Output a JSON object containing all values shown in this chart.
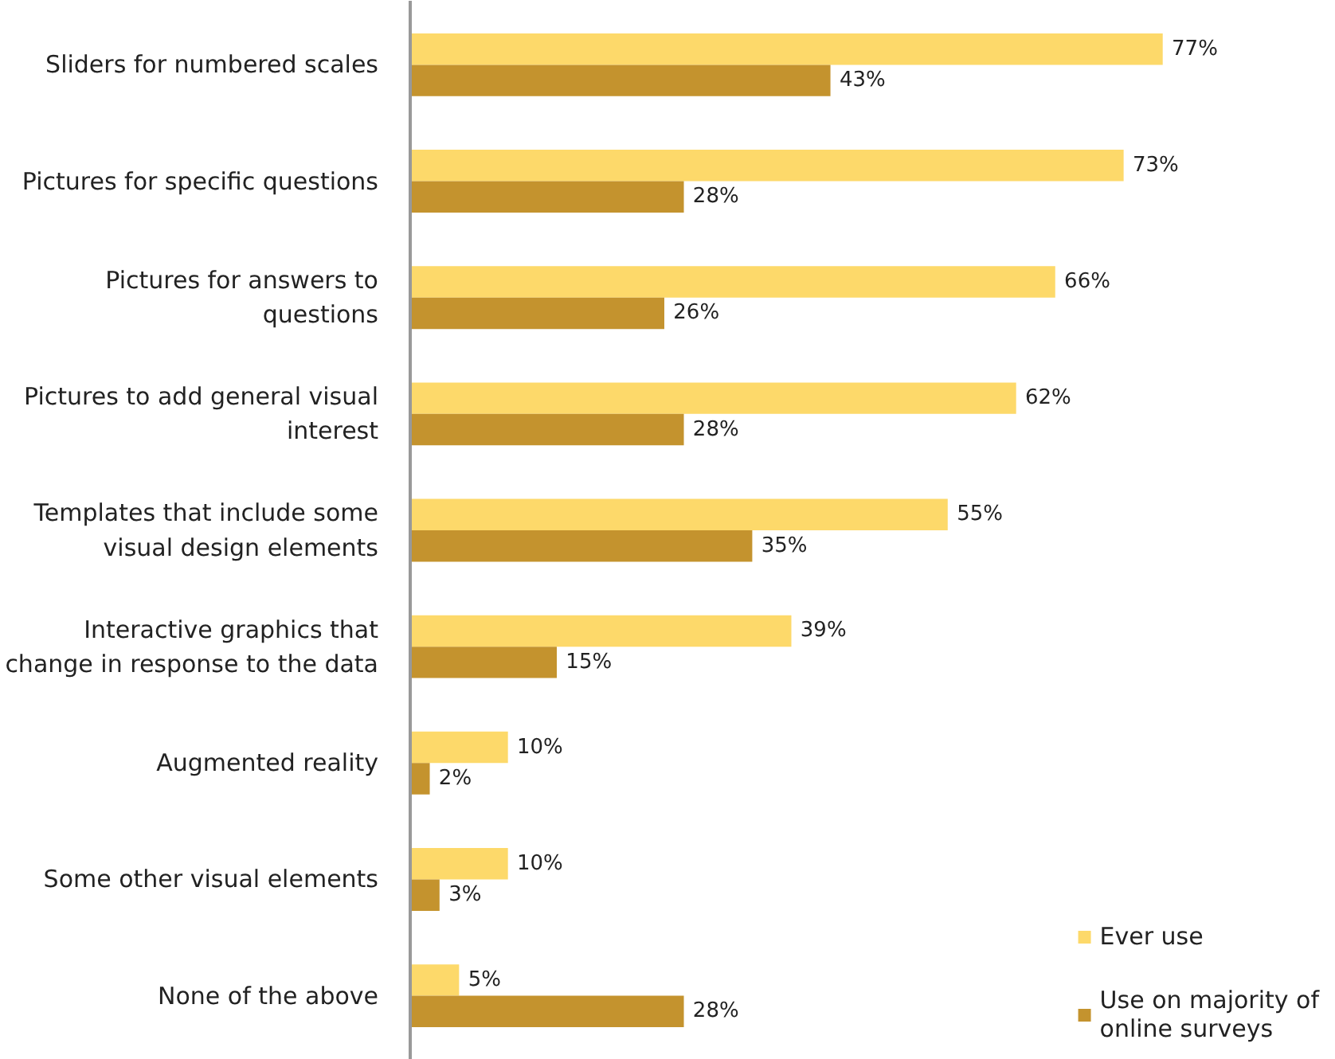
{
  "chart_data": {
    "type": "bar",
    "orientation": "horizontal",
    "categories": [
      "Sliders for numbered scales",
      "Pictures for specific questions",
      "Pictures for answers to questions",
      "Pictures to add general visual interest",
      "Templates that include some visual design elements",
      "Interactive graphics that change in response to the data",
      "Augmented reality",
      "Some other visual elements",
      "None of the above"
    ],
    "series": [
      {
        "name": "Ever use",
        "color": "#fdd96a",
        "values": [
          77,
          73,
          66,
          62,
          55,
          39,
          10,
          10,
          5
        ],
        "value_labels": [
          "77%",
          "73%",
          "66%",
          "62%",
          "55%",
          "39%",
          "10%",
          "10%",
          "5%"
        ]
      },
      {
        "name": "Use on majority of online surveys",
        "color": "#c4932e",
        "values": [
          43,
          28,
          26,
          28,
          35,
          15,
          2,
          3,
          28
        ],
        "value_labels": [
          "43%",
          "28%",
          "26%",
          "28%",
          "35%",
          "15%",
          "2%",
          "3%",
          "28%"
        ]
      }
    ],
    "legend": "bottom right",
    "grid": false
  }
}
